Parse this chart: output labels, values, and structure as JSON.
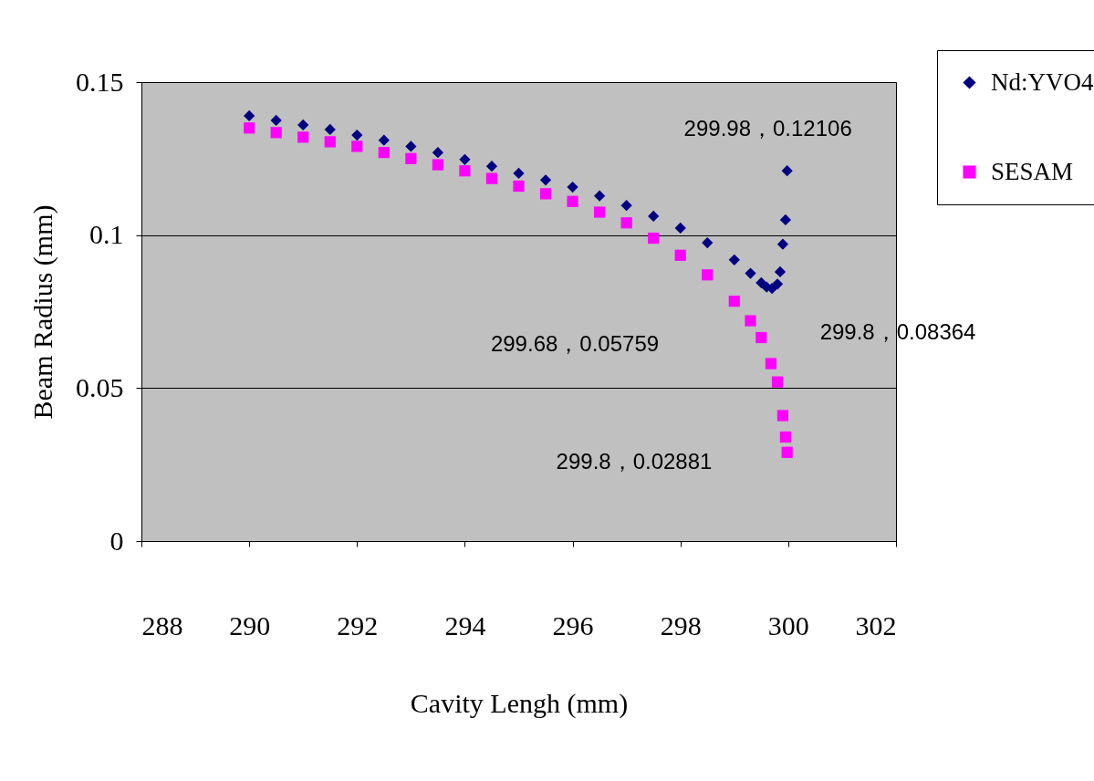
{
  "chart_data": {
    "type": "scatter",
    "xlabel": "Cavity Lengh (mm)",
    "ylabel": "Beam Radius (mm)",
    "xlim": [
      288,
      302
    ],
    "xticks": [
      288,
      290,
      292,
      294,
      296,
      298,
      300,
      302
    ],
    "ylim": [
      0,
      0.15
    ],
    "yticks": [
      0,
      0.05,
      0.1,
      0.15
    ],
    "grid": "y",
    "legend": "top right",
    "series": [
      {
        "name": "Nd:YVO4",
        "color": "#000080",
        "marker": "diamond",
        "x": [
          290,
          290.5,
          291,
          291.5,
          292,
          292.5,
          293,
          293.5,
          294,
          294.5,
          295,
          295.5,
          296,
          296.5,
          297,
          297.5,
          298,
          298.5,
          299,
          299.3,
          299.5,
          299.6,
          299.7,
          299.8,
          299.85,
          299.9,
          299.95,
          299.98
        ],
        "values": [
          0.139,
          0.1375,
          0.136,
          0.1345,
          0.1327,
          0.131,
          0.129,
          0.127,
          0.1247,
          0.1225,
          0.1202,
          0.118,
          0.1157,
          0.1128,
          0.1097,
          0.1062,
          0.1023,
          0.0975,
          0.0919,
          0.0875,
          0.0844,
          0.083,
          0.0826,
          0.084,
          0.088,
          0.097,
          0.105,
          0.121
        ]
      },
      {
        "name": "SESAM",
        "color": "#ff00ff",
        "marker": "square",
        "x": [
          290,
          290.5,
          291,
          291.5,
          292,
          292.5,
          293,
          293.5,
          294,
          294.5,
          295,
          295.5,
          296,
          296.5,
          297,
          297.5,
          298,
          298.5,
          299,
          299.3,
          299.5,
          299.68,
          299.8,
          299.9,
          299.95,
          299.98
        ],
        "values": [
          0.135,
          0.1335,
          0.132,
          0.1305,
          0.129,
          0.127,
          0.125,
          0.123,
          0.121,
          0.1185,
          0.116,
          0.1135,
          0.111,
          0.1075,
          0.104,
          0.099,
          0.0934,
          0.087,
          0.0784,
          0.072,
          0.0665,
          0.058,
          0.052,
          0.041,
          0.034,
          0.029
        ]
      }
    ],
    "annotations": [
      {
        "text": "299.98，0.12106",
        "x": 299.98,
        "y": 0.12106
      },
      {
        "text": "299.8，0.08364",
        "x": 299.8,
        "y": 0.08364
      },
      "299.68，0.05759",
      "299.8，0.02881"
    ]
  }
}
